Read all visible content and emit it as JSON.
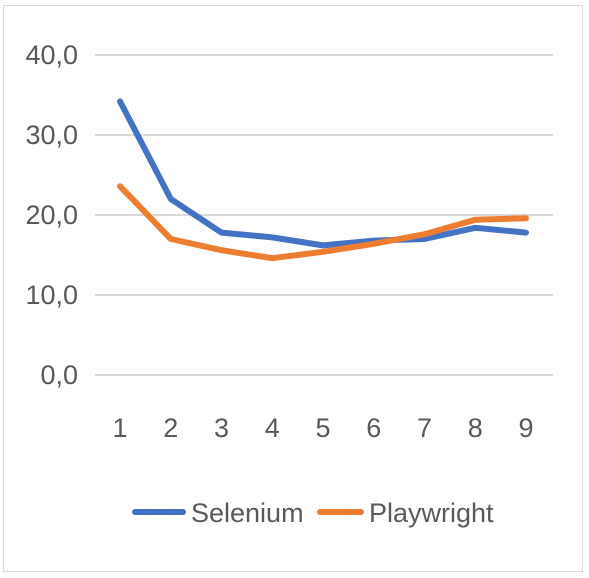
{
  "chart_data": {
    "type": "line",
    "x": [
      1,
      2,
      3,
      4,
      5,
      6,
      7,
      8,
      9
    ],
    "series": [
      {
        "name": "Selenium",
        "color": "#4472c4",
        "values": [
          34.2,
          22.0,
          17.8,
          17.2,
          16.2,
          16.8,
          17.0,
          18.4,
          17.8
        ]
      },
      {
        "name": "Playwright",
        "color": "#ed7d31",
        "values": [
          23.6,
          17.0,
          15.6,
          14.6,
          15.4,
          16.4,
          17.6,
          19.4,
          19.6
        ]
      }
    ],
    "y_ticks": [
      "40,0",
      "30,0",
      "20,0",
      "10,0",
      "0,0"
    ],
    "x_ticks": [
      "1",
      "2",
      "3",
      "4",
      "5",
      "6",
      "7",
      "8",
      "9"
    ],
    "ylim": [
      0,
      40
    ],
    "grid": true,
    "legend_position": "bottom",
    "gridline_color": "#d9d9d9"
  }
}
